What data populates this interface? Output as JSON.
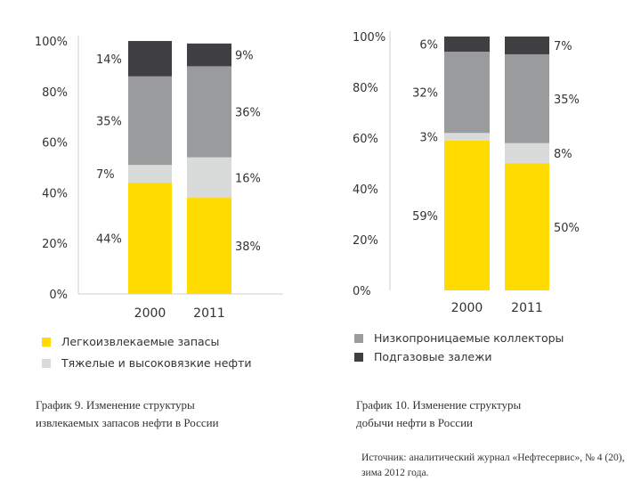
{
  "colors": {
    "easy": "#FFDB00",
    "heavy": "#D9DBDB",
    "lowperm": "#9A9B9D",
    "gascap": "#404042",
    "axis": "#CFCFCF"
  },
  "chart_data": [
    {
      "type": "bar",
      "stacked": true,
      "title": "График 9. Изменение структуры извлекаемых запасов нефти в России",
      "categories": [
        "2000",
        "2011"
      ],
      "ylim": [
        0,
        100
      ],
      "yticks": [
        "0%",
        "20%",
        "40%",
        "60%",
        "80%",
        "100%"
      ],
      "series": [
        {
          "name": "Легкоизвлекаемые запасы",
          "values": [
            44,
            38
          ],
          "labels": [
            "44%",
            "38%"
          ]
        },
        {
          "name": "Тяжелые и высоковязкие нефти",
          "values": [
            7,
            16
          ],
          "labels": [
            "7%",
            "16%"
          ]
        },
        {
          "name": "Низкопроницаемые коллекторы",
          "values": [
            35,
            36
          ],
          "labels": [
            "35%",
            "36%"
          ]
        },
        {
          "name": "Подгазовые залежи",
          "values": [
            14,
            9
          ],
          "labels": [
            "14%",
            "9%"
          ]
        }
      ]
    },
    {
      "type": "bar",
      "stacked": true,
      "title": "График 10. Изменение структуры добычи нефти в России",
      "categories": [
        "2000",
        "2011"
      ],
      "ylim": [
        0,
        100
      ],
      "yticks": [
        "0%",
        "20%",
        "40%",
        "60%",
        "80%",
        "100%"
      ],
      "series": [
        {
          "name": "Легкоизвлекаемые запасы",
          "values": [
            59,
            50
          ],
          "labels": [
            "59%",
            "50%"
          ]
        },
        {
          "name": "Тяжелые и высоковязкие нефти",
          "values": [
            3,
            8
          ],
          "labels": [
            "3%",
            "8%"
          ]
        },
        {
          "name": "Низкопроницаемые коллекторы",
          "values": [
            32,
            35
          ],
          "labels": [
            "32%",
            "35%"
          ]
        },
        {
          "name": "Подгазовые залежи",
          "values": [
            6,
            7
          ],
          "labels": [
            "6%",
            "7%"
          ]
        }
      ]
    }
  ],
  "legend": [
    {
      "label": "Легкоизвлекаемые запасы",
      "color": "#FFDB00"
    },
    {
      "label": "Тяжелые и высоковязкие нефти",
      "color": "#D9DBDB"
    },
    {
      "label": "Низкопроницаемые коллекторы",
      "color": "#9A9B9D"
    },
    {
      "label": "Подгазовые залежи",
      "color": "#404042"
    }
  ],
  "captions": {
    "left_line1": "График 9. Изменение структуры",
    "left_line2": "извлекаемых запасов нефти в России",
    "right_line1": "График 10. Изменение структуры",
    "right_line2": "добычи нефти в России"
  },
  "source": "Источник: аналитический журнал «Нефтесервис», № 4 (20), зима 2012 года."
}
